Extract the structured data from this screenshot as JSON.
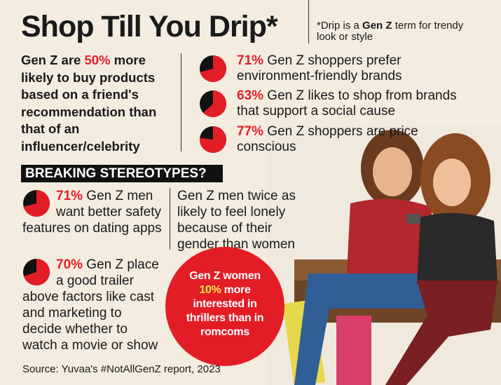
{
  "header": {
    "title": "Shop Till You Drip*",
    "footnote": [
      "*Drip is a ",
      "Gen Z",
      " term for trendy look or style"
    ]
  },
  "intro": [
    "Gen Z are ",
    "50%",
    " more likely to buy products based on a friend's recommendation than that of an influencer/celebrity"
  ],
  "stats": [
    {
      "value": 71,
      "label": "71%",
      "text": " Gen Z shoppers prefer environment-friendly brands"
    },
    {
      "value": 63,
      "label": "63%",
      "text": " Gen Z likes to shop from brands that support a social cause"
    },
    {
      "value": 77,
      "label": "77%",
      "text": " Gen Z shoppers are price conscious"
    }
  ],
  "section_title": "BREAKING STEREOTYPES?",
  "stereotypes": [
    {
      "value": 71,
      "label": "71%",
      "text": " Gen Z men want better safety features on dating apps"
    },
    {
      "text": "Gen Z men twice as likely to feel lonely because of their gender than women"
    },
    {
      "value": 70,
      "label": "70%",
      "text": " Gen Z place a good trailer above factors like cast and marketing to decide whether to watch a movie or show"
    }
  ],
  "callout": [
    "Gen Z women",
    "10%",
    " more interested in thrillers than in romcoms"
  ],
  "source": "Source: Yuvaa's #NotAllGenZ report, 2023"
}
